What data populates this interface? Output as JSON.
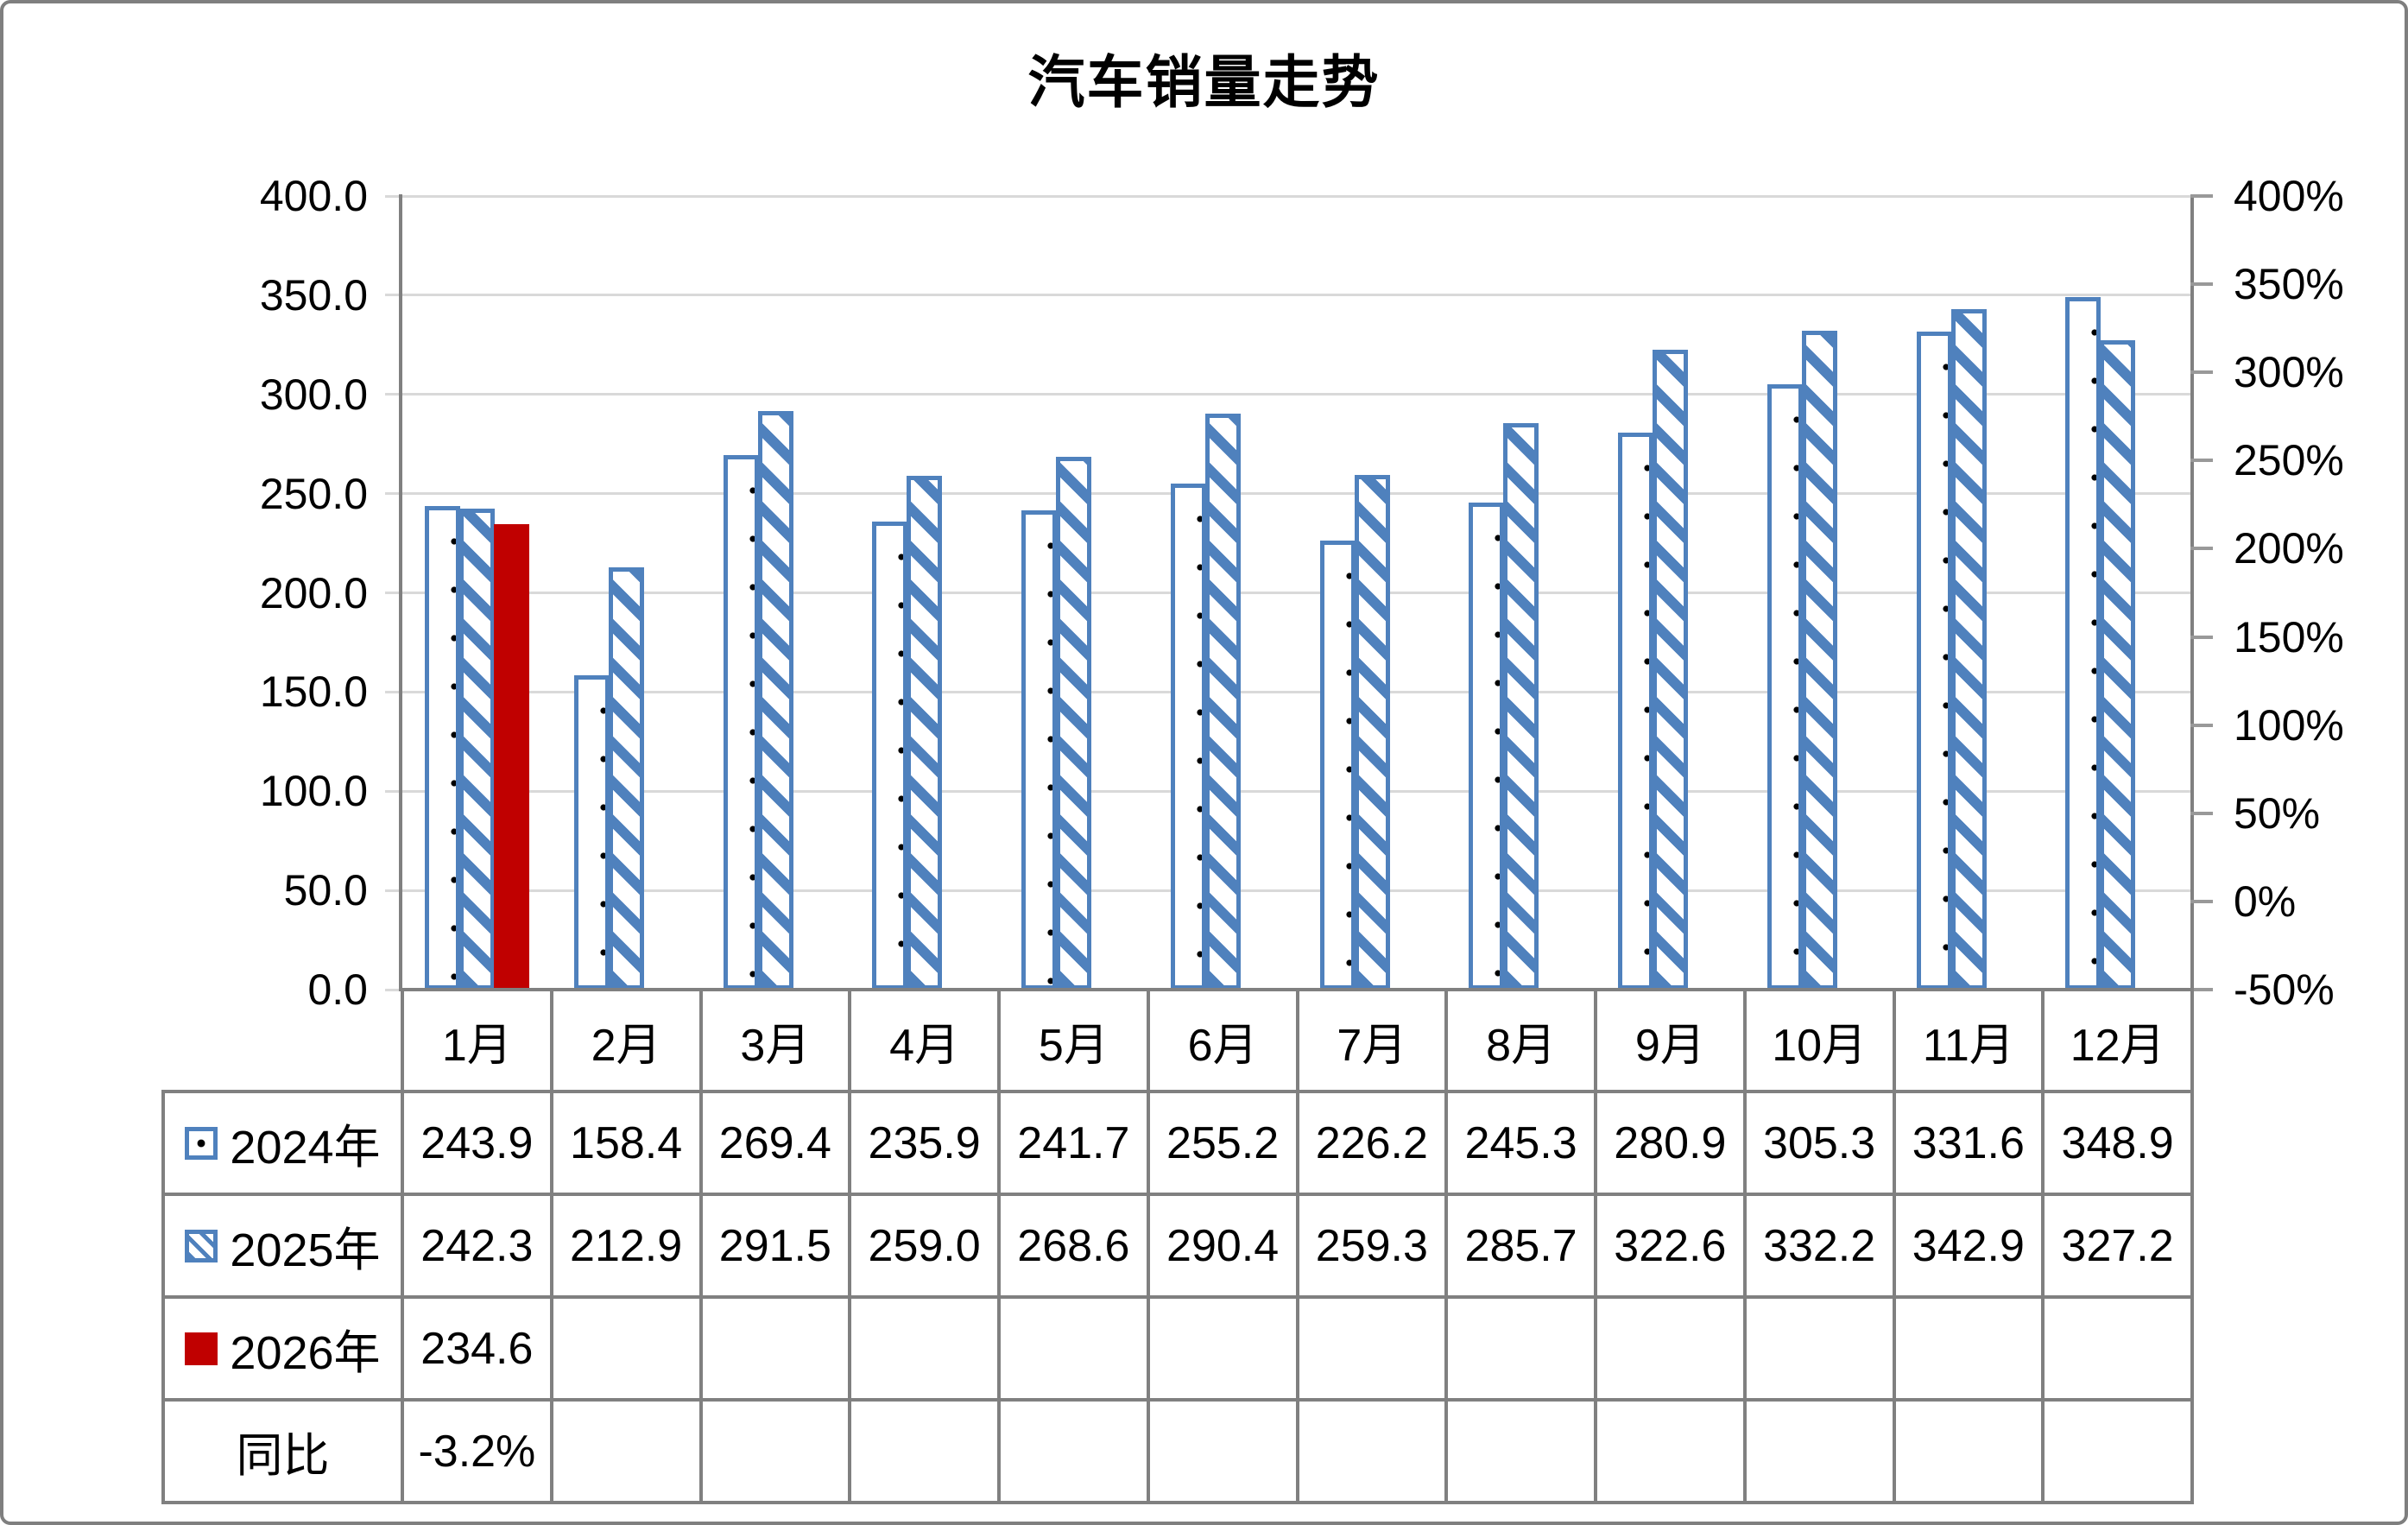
{
  "title": "汽车销量走势",
  "chart_data": {
    "type": "bar",
    "title": "汽车销量走势",
    "categories": [
      "1月",
      "2月",
      "3月",
      "4月",
      "5月",
      "6月",
      "7月",
      "8月",
      "9月",
      "10月",
      "11月",
      "12月"
    ],
    "series": [
      {
        "name": "2024年",
        "pattern": "dots",
        "color": "#4F81BD",
        "values": [
          243.9,
          158.4,
          269.4,
          235.9,
          241.7,
          255.2,
          226.2,
          245.3,
          280.9,
          305.3,
          331.6,
          348.9
        ]
      },
      {
        "name": "2025年",
        "pattern": "diagonal",
        "color": "#4F81BD",
        "values": [
          242.3,
          212.9,
          291.5,
          259.0,
          268.6,
          290.4,
          259.3,
          285.7,
          322.6,
          332.2,
          342.9,
          327.2
        ]
      },
      {
        "name": "2026年",
        "pattern": "solid",
        "color": "#C00000",
        "values": [
          234.6,
          null,
          null,
          null,
          null,
          null,
          null,
          null,
          null,
          null,
          null,
          null
        ]
      }
    ],
    "extra_rows": [
      {
        "name": "同比",
        "values": [
          "-3.2%",
          "",
          "",
          "",
          "",
          "",
          "",
          "",
          "",
          "",
          "",
          ""
        ]
      }
    ],
    "left_axis": {
      "min": 0,
      "max": 400,
      "step": 50,
      "labels": [
        "400.0",
        "350.0",
        "300.0",
        "250.0",
        "200.0",
        "150.0",
        "100.0",
        "50.0",
        "0.0"
      ]
    },
    "right_axis": {
      "min": -50,
      "max": 400,
      "step": 50,
      "labels": [
        "400%",
        "350%",
        "300%",
        "250%",
        "200%",
        "150%",
        "100%",
        "50%",
        "0%",
        "-50%"
      ]
    },
    "grid": true,
    "legend_position": "table-left",
    "colors": {
      "bar_blue": "#4F81BD",
      "bar_red": "#C00000",
      "grid": "#D9D9D9",
      "axis": "#808080",
      "table_border": "#808080",
      "text": "#000000"
    }
  }
}
